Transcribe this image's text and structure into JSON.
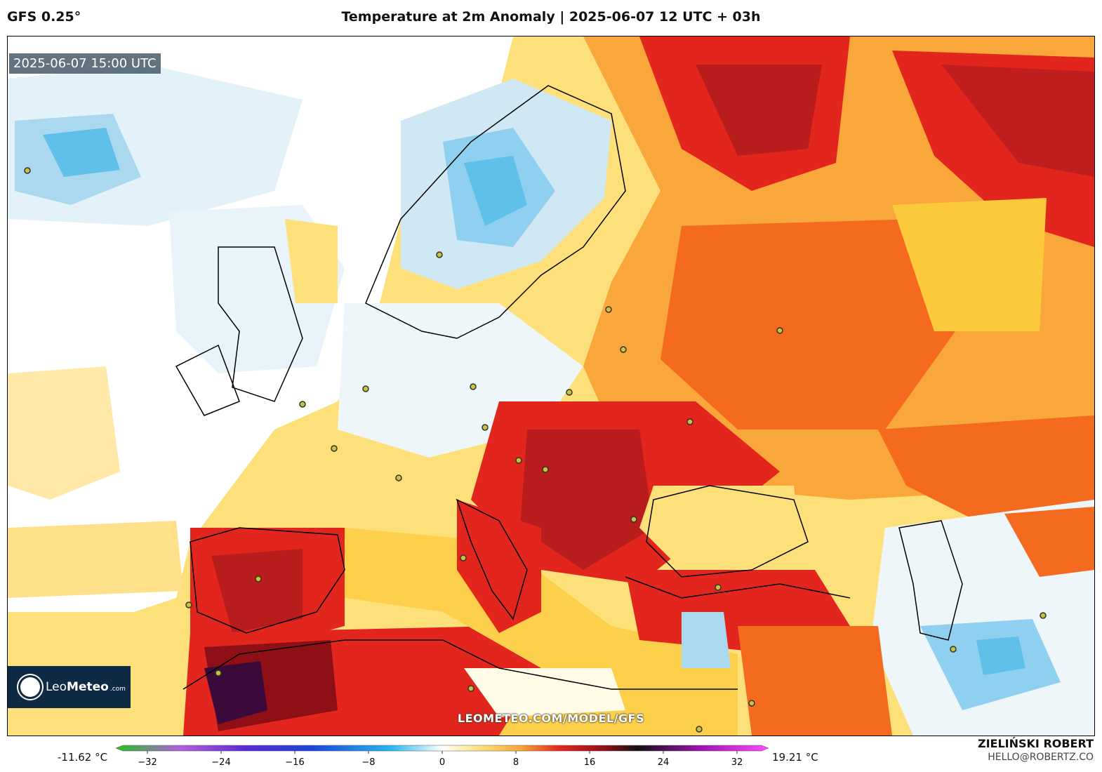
{
  "header": {
    "model": "GFS 0.25°",
    "title": "Temperature at 2m Anomaly | 2025-06-07 12 UTC + 03h"
  },
  "map": {
    "valid_time": "2025-06-07 15:00 UTC",
    "watermark": "LEOMETEO.COM/MODEL/GFS",
    "logo": {
      "brand_light": "Leo",
      "brand_bold": "Meteo",
      "suffix": ".com"
    },
    "colors": {
      "sea_cold": "#e8f4fa",
      "cold": "#a9d8ef",
      "colder": "#5fc0ea",
      "near_zero": "#ffffff",
      "warm": "#fde07a",
      "warmer": "#f9b23a",
      "hot": "#f46a1f",
      "very_hot": "#e3261d",
      "extreme": "#8e1016",
      "extreme_dark": "#3b0a3a"
    }
  },
  "colorbar": {
    "min_label": "-11.62 °C",
    "max_label": "19.21 °C",
    "ticks": [
      "−32",
      "−24",
      "−16",
      "−8",
      "0",
      "8",
      "16",
      "24",
      "32"
    ]
  },
  "credit": {
    "name": "ZIELIŃSKI ROBERT",
    "email": "HELLO@ROBERTZ.CO"
  }
}
